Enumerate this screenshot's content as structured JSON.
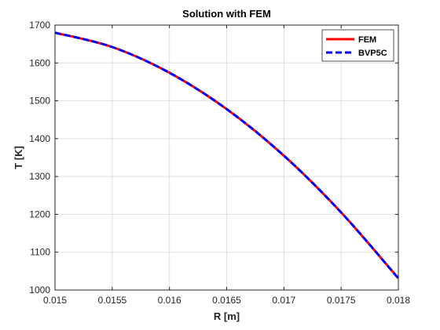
{
  "chart_data": {
    "type": "line",
    "title": "Solution with FEM",
    "xlabel": "R [m]",
    "ylabel": "T [K]",
    "xlim": [
      0.015,
      0.018
    ],
    "ylim": [
      1000,
      1700
    ],
    "xticks": [
      0.015,
      0.0155,
      0.016,
      0.0165,
      0.017,
      0.0175,
      0.018
    ],
    "xtick_labels": [
      "0.015",
      "0.0155",
      "0.016",
      "0.0165",
      "0.017",
      "0.0175",
      "0.018"
    ],
    "yticks": [
      1000,
      1100,
      1200,
      1300,
      1400,
      1500,
      1600,
      1700
    ],
    "ytick_labels": [
      "1000",
      "1100",
      "1200",
      "1300",
      "1400",
      "1500",
      "1600",
      "1700"
    ],
    "grid": true,
    "legend_position": "top-right",
    "series": [
      {
        "name": "FEM",
        "color": "#ff0000",
        "style": "solid",
        "x": [
          0.015,
          0.0155,
          0.016,
          0.0165,
          0.017,
          0.0175,
          0.018
        ],
        "y": [
          1680,
          1642,
          1574,
          1478,
          1355,
          1205,
          1031
        ]
      },
      {
        "name": "BVP5C",
        "color": "#0000ff",
        "style": "dashed",
        "x": [
          0.015,
          0.0155,
          0.016,
          0.0165,
          0.017,
          0.0175,
          0.018
        ],
        "y": [
          1680,
          1642,
          1574,
          1478,
          1355,
          1205,
          1031
        ]
      }
    ]
  }
}
